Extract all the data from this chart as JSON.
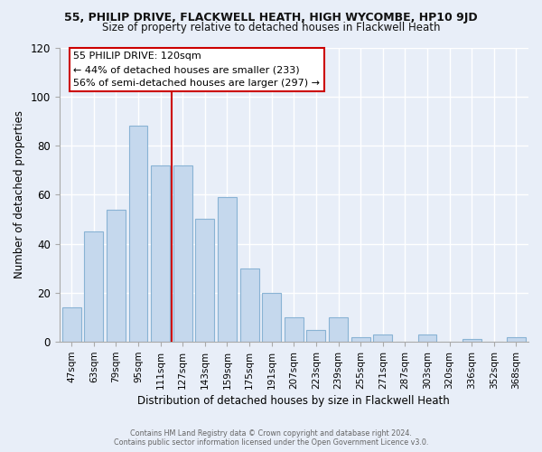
{
  "title1": "55, PHILIP DRIVE, FLACKWELL HEATH, HIGH WYCOMBE, HP10 9JD",
  "title2": "Size of property relative to detached houses in Flackwell Heath",
  "xlabel": "Distribution of detached houses by size in Flackwell Heath",
  "ylabel": "Number of detached properties",
  "bar_labels": [
    "47sqm",
    "63sqm",
    "79sqm",
    "95sqm",
    "111sqm",
    "127sqm",
    "143sqm",
    "159sqm",
    "175sqm",
    "191sqm",
    "207sqm",
    "223sqm",
    "239sqm",
    "255sqm",
    "271sqm",
    "287sqm",
    "303sqm",
    "320sqm",
    "336sqm",
    "352sqm",
    "368sqm"
  ],
  "bar_values": [
    14,
    45,
    54,
    88,
    72,
    72,
    50,
    59,
    30,
    20,
    10,
    5,
    10,
    2,
    3,
    0,
    3,
    0,
    1,
    0,
    2
  ],
  "bar_color": "#c5d8ed",
  "bar_edge_color": "#89b3d4",
  "vline_color": "#cc0000",
  "annotation_title": "55 PHILIP DRIVE: 120sqm",
  "annotation_line1": "← 44% of detached houses are smaller (233)",
  "annotation_line2": "56% of semi-detached houses are larger (297) →",
  "annotation_box_color": "#ffffff",
  "annotation_box_edge": "#cc0000",
  "ylim": [
    0,
    120
  ],
  "yticks": [
    0,
    20,
    40,
    60,
    80,
    100,
    120
  ],
  "footer1": "Contains HM Land Registry data © Crown copyright and database right 2024.",
  "footer2": "Contains public sector information licensed under the Open Government Licence v3.0.",
  "bg_color": "#e8eef8",
  "grid_color": "#ffffff",
  "title1_fontsize": 9,
  "title2_fontsize": 8.5
}
